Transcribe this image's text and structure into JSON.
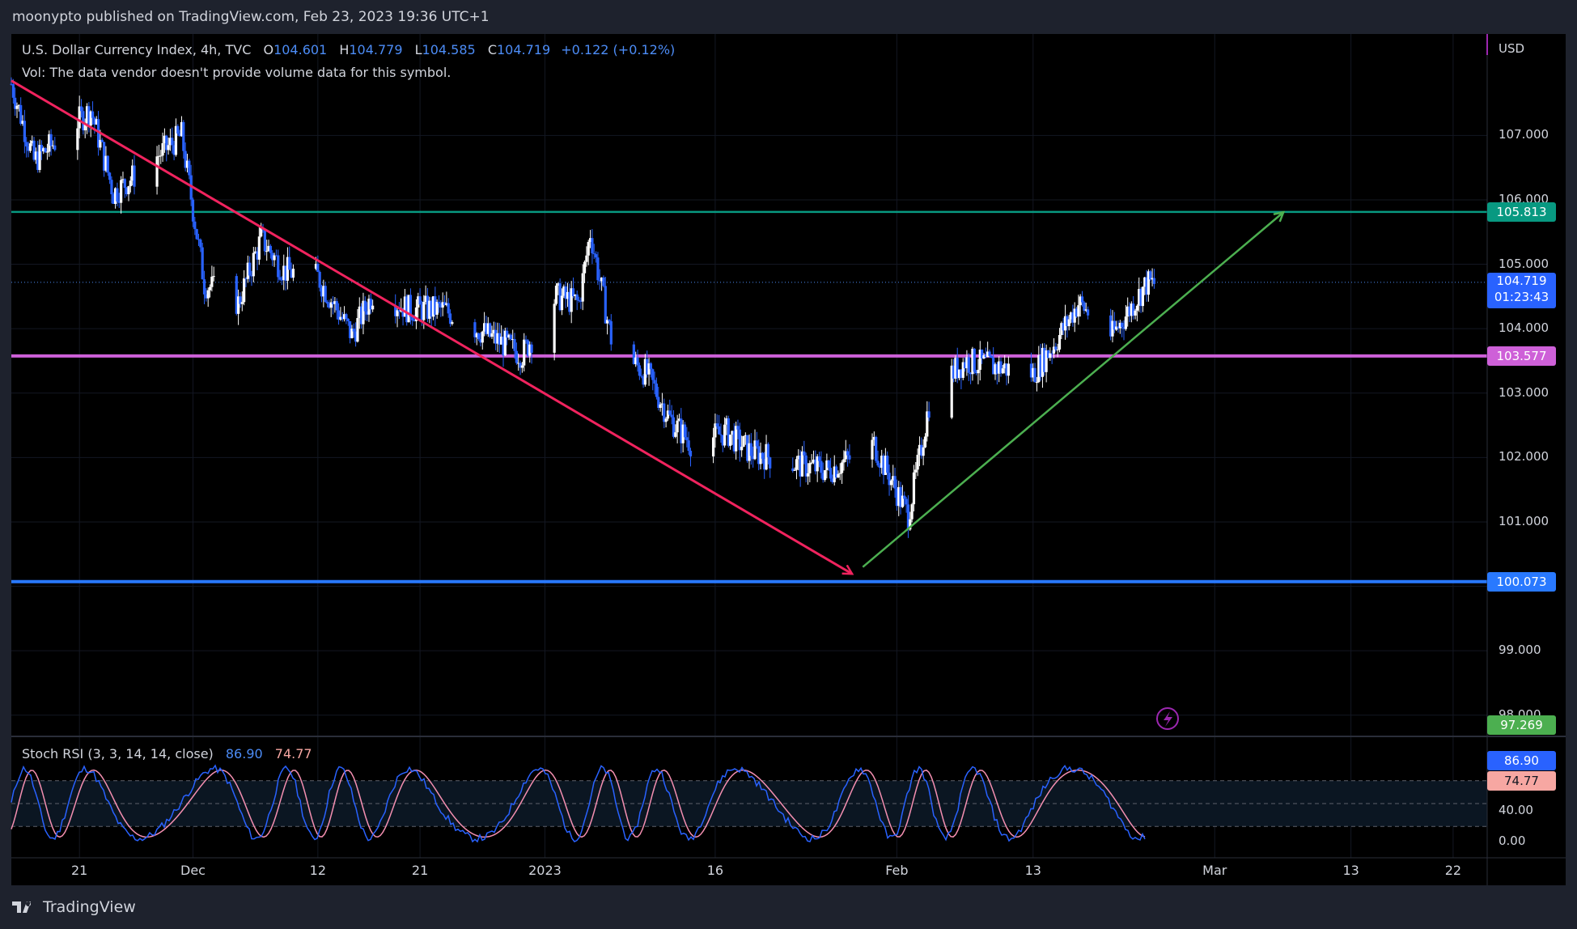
{
  "publisher_line": "moonypto published on TradingView.com, Feb 23, 2023 19:36 UTC+1",
  "legend": {
    "symbol": "U.S. Dollar Currency Index, 4h, TVC",
    "o_label": "O",
    "o_value": "104.601",
    "h_label": "H",
    "h_value": "104.779",
    "l_label": "L",
    "l_value": "104.585",
    "c_label": "C",
    "c_value": "104.719",
    "change": "+0.122 (+0.12%)",
    "vol_note": "Vol: The data vendor doesn't provide volume data for this symbol."
  },
  "rsi_legend": {
    "name": "Stoch RSI (3, 3, 14, 14, close)",
    "k_value": "86.90",
    "d_value": "74.77"
  },
  "brand": "TradingView",
  "currency": "USD",
  "colors": {
    "background": "#000000",
    "chrome": "#1e222d",
    "up_candle": "#ffffff",
    "down_candle": "#2962ff",
    "red_arrow": "#f0235e",
    "green_arrow": "#4caf50",
    "teal_level": "#089981",
    "magenta_level": "#ce60d8",
    "blue_level": "#2979ff",
    "rsi_k": "#2962ff",
    "rsi_d": "#f48fb1"
  },
  "chart_data": {
    "type": "candlestick",
    "timeframe": "4h",
    "x_tick_labels": [
      "21",
      "Dec",
      "12",
      "21",
      "2023",
      "16",
      "Feb",
      "13",
      "Mar",
      "13",
      "22"
    ],
    "y_tick_labels": [
      "107.000",
      "106.000",
      "105.000",
      "104.000",
      "103.000",
      "102.000",
      "101.000",
      "99.000",
      "98.000"
    ],
    "ylim": [
      96.9,
      108.0
    ],
    "price_path": [
      {
        "date": "2022-11-15",
        "price": 107.8
      },
      {
        "date": "2022-11-17",
        "price": 106.6
      },
      {
        "date": "2022-11-22",
        "price": 107.4
      },
      {
        "date": "2022-11-24",
        "price": 106.1
      },
      {
        "date": "2022-11-28",
        "price": 106.7
      },
      {
        "date": "2022-11-30",
        "price": 107.0
      },
      {
        "date": "2022-12-02",
        "price": 104.7
      },
      {
        "date": "2022-12-05",
        "price": 104.4
      },
      {
        "date": "2022-12-07",
        "price": 105.4
      },
      {
        "date": "2022-12-09",
        "price": 104.9
      },
      {
        "date": "2022-12-12",
        "price": 104.8
      },
      {
        "date": "2022-12-15",
        "price": 103.9
      },
      {
        "date": "2022-12-17",
        "price": 104.6
      },
      {
        "date": "2022-12-20",
        "price": 104.3
      },
      {
        "date": "2022-12-23",
        "price": 104.3
      },
      {
        "date": "2022-12-27",
        "price": 103.9
      },
      {
        "date": "2022-12-30",
        "price": 103.6
      },
      {
        "date": "2023-01-02",
        "price": 104.5
      },
      {
        "date": "2023-01-04",
        "price": 104.4
      },
      {
        "date": "2023-01-05",
        "price": 105.5
      },
      {
        "date": "2023-01-07",
        "price": 103.7
      },
      {
        "date": "2023-01-10",
        "price": 103.3
      },
      {
        "date": "2023-01-12",
        "price": 102.6
      },
      {
        "date": "2023-01-14",
        "price": 102.2
      },
      {
        "date": "2023-01-17",
        "price": 102.4
      },
      {
        "date": "2023-01-19",
        "price": 102.1
      },
      {
        "date": "2023-01-23",
        "price": 101.9
      },
      {
        "date": "2023-01-26",
        "price": 101.8
      },
      {
        "date": "2023-01-30",
        "price": 102.2
      },
      {
        "date": "2023-02-02",
        "price": 101.1
      },
      {
        "date": "2023-02-03",
        "price": 102.0
      },
      {
        "date": "2023-02-04",
        "price": 103.0
      },
      {
        "date": "2023-02-07",
        "price": 103.5
      },
      {
        "date": "2023-02-10",
        "price": 103.4
      },
      {
        "date": "2023-02-13",
        "price": 103.3
      },
      {
        "date": "2023-02-15",
        "price": 103.8
      },
      {
        "date": "2023-02-17",
        "price": 104.4
      },
      {
        "date": "2023-02-20",
        "price": 103.9
      },
      {
        "date": "2023-02-23",
        "price": 104.7
      }
    ],
    "horizontal_levels": [
      {
        "price": 105.813,
        "label": "105.813",
        "color": "#089981"
      },
      {
        "price": 103.577,
        "label": "103.577",
        "color": "#ce60d8"
      },
      {
        "price": 100.073,
        "label": "100.073",
        "color": "#2979ff"
      }
    ],
    "last_price": {
      "price": 104.719,
      "label": "104.719",
      "countdown": "01:23:43"
    },
    "bottom_marker": {
      "price": 97.269,
      "label": "97.269"
    },
    "annotations": [
      {
        "type": "arrow",
        "color": "red",
        "from": {
          "date": "2022-11-15",
          "price": 107.85
        },
        "to": {
          "date": "2023-01-28",
          "price": 100.2
        }
      },
      {
        "type": "arrow",
        "color": "green",
        "from": {
          "date": "2023-01-29",
          "price": 100.3
        },
        "to": {
          "date": "2023-03-07",
          "price": 105.8
        }
      }
    ],
    "stoch_rsi": {
      "k": 86.9,
      "d": 74.77,
      "ylim": [
        0,
        100
      ],
      "y_tick_labels": [
        "40.00",
        "0.00"
      ],
      "bands": [
        80,
        50,
        20
      ]
    }
  }
}
